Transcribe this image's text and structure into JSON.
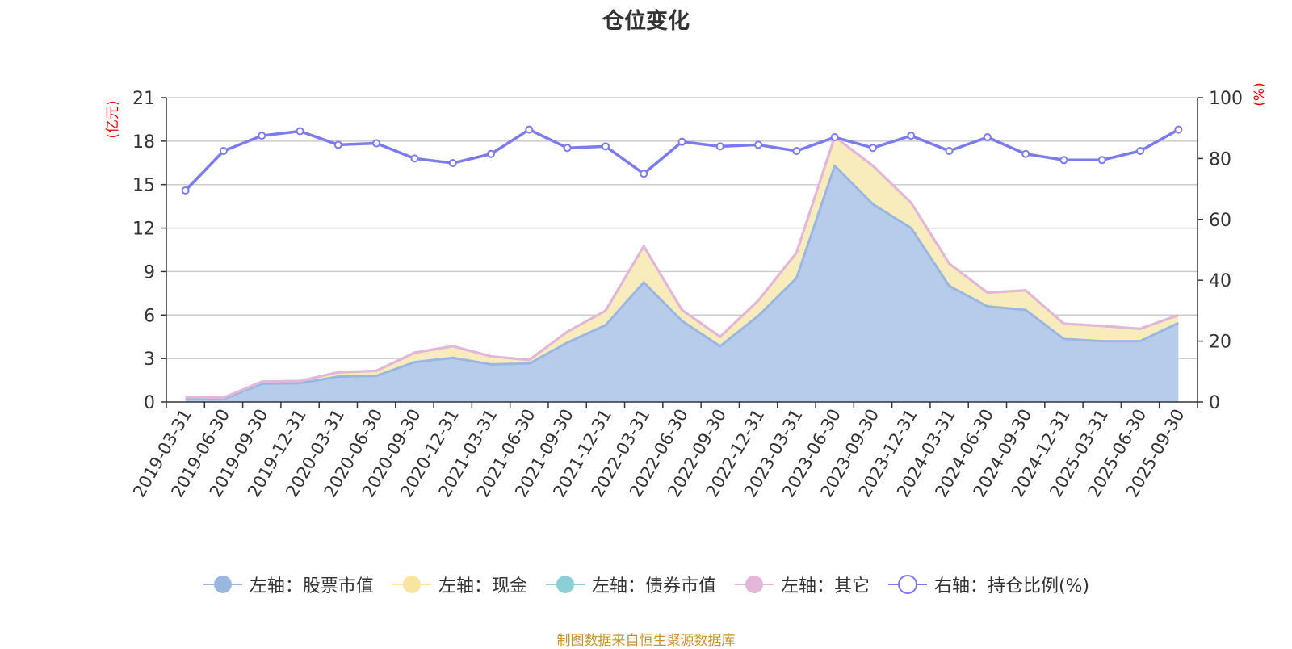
{
  "title": "仓位变化",
  "source": "制图数据来自恒生聚源数据库",
  "colors": {
    "stock": "#9ab7e0",
    "stock_fill": "#b7cbea",
    "cash": "#f8e5a0",
    "cash_fill": "#f9ecbc",
    "bond": "#8ccfd6",
    "other": "#e6b5da",
    "ratio": "#7b7bed",
    "axis_unit": "#ee0000"
  },
  "legend": [
    {
      "key": "stock",
      "label": "左轴：股票市值",
      "style": "filled"
    },
    {
      "key": "cash",
      "label": "左轴：现金",
      "style": "filled"
    },
    {
      "key": "bond",
      "label": "左轴：债券市值",
      "style": "filled"
    },
    {
      "key": "other",
      "label": "左轴：其它",
      "style": "filled"
    },
    {
      "key": "ratio",
      "label": "右轴：持仓比例(%)",
      "style": "hollow"
    }
  ],
  "chart_data": {
    "type": "area",
    "title": "仓位变化",
    "left_axis": {
      "unit": "(亿元)",
      "min": 0,
      "max": 21,
      "ticks": [
        0,
        3,
        6,
        9,
        12,
        15,
        18,
        21
      ]
    },
    "right_axis": {
      "unit": "(%)",
      "min": 0,
      "max": 100,
      "ticks": [
        0,
        20,
        40,
        60,
        80,
        100
      ]
    },
    "categories": [
      "2019-03-31",
      "2019-06-30",
      "2019-09-30",
      "2019-12-31",
      "2020-03-31",
      "2020-06-30",
      "2020-09-30",
      "2020-12-31",
      "2021-03-31",
      "2021-06-30",
      "2021-09-30",
      "2021-12-31",
      "2022-03-31",
      "2022-06-30",
      "2022-09-30",
      "2022-12-31",
      "2023-03-31",
      "2023-06-30",
      "2023-09-30",
      "2023-12-31",
      "2024-03-31",
      "2024-06-30",
      "2024-09-30",
      "2024-12-31",
      "2025-03-31",
      "2025-06-30",
      "2025-09-30"
    ],
    "series": [
      {
        "name": "左轴：股票市值",
        "axis": "left",
        "stack": true,
        "values": [
          0.25,
          0.2,
          1.25,
          1.3,
          1.75,
          1.8,
          2.75,
          3.05,
          2.6,
          2.65,
          4.1,
          5.3,
          8.25,
          5.6,
          3.85,
          5.95,
          8.55,
          16.3,
          13.65,
          12.0,
          8.0,
          6.6,
          6.35,
          4.35,
          4.2,
          4.2,
          5.45
        ]
      },
      {
        "name": "左轴：现金",
        "axis": "left",
        "stack": true,
        "values": [
          0.1,
          0.1,
          0.15,
          0.15,
          0.3,
          0.35,
          0.65,
          0.8,
          0.55,
          0.25,
          0.75,
          1.0,
          2.5,
          0.75,
          0.65,
          1.05,
          1.75,
          2.0,
          2.65,
          1.75,
          1.55,
          0.95,
          1.35,
          1.05,
          1.05,
          0.85,
          0.55
        ]
      },
      {
        "name": "左轴：债券市值",
        "axis": "left",
        "stack": true,
        "values": [
          0,
          0,
          0,
          0,
          0,
          0,
          0,
          0,
          0,
          0,
          0,
          0,
          0,
          0,
          0,
          0,
          0,
          0,
          0,
          0,
          0,
          0,
          0,
          0,
          0,
          0,
          0
        ]
      },
      {
        "name": "左轴：其它",
        "axis": "left",
        "stack": true,
        "values": [
          0,
          0,
          0,
          0,
          0,
          0,
          0,
          0,
          0,
          0,
          0,
          0,
          0,
          0,
          0,
          0,
          0,
          0,
          0,
          0,
          0,
          0,
          0,
          0,
          0,
          0,
          0
        ]
      },
      {
        "name": "右轴：持仓比例(%)",
        "axis": "right",
        "type": "line",
        "values": [
          69.5,
          82.5,
          87.5,
          89,
          84.5,
          85,
          80,
          78.5,
          81.5,
          89.5,
          83.5,
          84,
          75,
          85.5,
          84,
          84.5,
          82.5,
          87,
          83.5,
          87.5,
          82.5,
          87,
          81.5,
          79.5,
          79.5,
          82.5,
          89.5
        ]
      }
    ]
  }
}
